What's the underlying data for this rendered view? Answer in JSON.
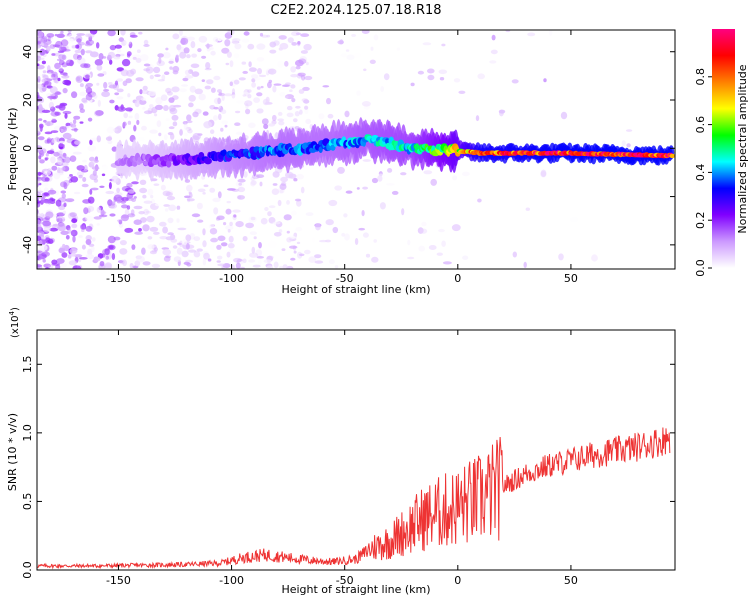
{
  "title": "C2E2.2024.125.07.18.R18",
  "chart_data": [
    {
      "type": "heatmap",
      "xlabel": "Height of straight line (km)",
      "ylabel": "Frequency (Hz)",
      "xlim": [
        -186,
        96
      ],
      "ylim": [
        -50,
        49
      ],
      "xticks": [
        -150,
        -100,
        -50,
        0,
        50
      ],
      "yticks": [
        -40,
        -20,
        0,
        20,
        40
      ],
      "colorbar": {
        "label": "Normalized spectral amplitude",
        "range": [
          0,
          1
        ],
        "ticks": [
          "0.0",
          "0.2",
          "0.4",
          "0.6",
          "0.8"
        ],
        "colors": [
          "#ffffff",
          "#cc99ff",
          "#8000ff",
          "#0000ff",
          "#00ffff",
          "#00ff00",
          "#ffff00",
          "#ff8000",
          "#ff0000",
          "#ff0080"
        ]
      },
      "ridge": [
        {
          "x": -140,
          "y": -5,
          "amplitude": 0.15
        },
        {
          "x": -120,
          "y": -5,
          "amplitude": 0.25
        },
        {
          "x": -100,
          "y": -3,
          "amplitude": 0.35
        },
        {
          "x": -80,
          "y": -1,
          "amplitude": 0.4
        },
        {
          "x": -60,
          "y": 1,
          "amplitude": 0.4
        },
        {
          "x": -40,
          "y": 4,
          "amplitude": 0.45
        },
        {
          "x": -20,
          "y": 0,
          "amplitude": 0.5
        },
        {
          "x": 0,
          "y": -1,
          "amplitude": 0.7
        },
        {
          "x": 10,
          "y": -2,
          "amplitude": 0.9
        },
        {
          "x": 50,
          "y": -2,
          "amplitude": 0.95
        },
        {
          "x": 90,
          "y": -3,
          "amplitude": 0.95
        }
      ]
    },
    {
      "type": "line",
      "xlabel": "Height of straight line (km)",
      "ylabel": "SNR (10 * v/v)",
      "multiplier_label": "(x10",
      "multiplier_exponent": "4",
      "multiplier_close": ")",
      "xlim": [
        -186,
        96
      ],
      "ylim": [
        0,
        17500
      ],
      "xticks": [
        -150,
        -100,
        -50,
        0,
        50
      ],
      "yticks": [
        "0.0",
        "0.5",
        "1.0",
        "1.5"
      ],
      "color": "#ee3333",
      "x": [
        -186,
        -160,
        -140,
        -120,
        -105,
        -95,
        -85,
        -75,
        -65,
        -55,
        -45,
        -38,
        -30,
        -22,
        -15,
        -8,
        0,
        10,
        20,
        30,
        40,
        50,
        60,
        70,
        80,
        90,
        94
      ],
      "y": [
        300,
        300,
        350,
        400,
        500,
        900,
        1100,
        900,
        700,
        600,
        800,
        1600,
        2100,
        3000,
        3800,
        4200,
        4600,
        5200,
        6100,
        7000,
        7600,
        8000,
        8400,
        8700,
        9000,
        9400,
        9700
      ]
    }
  ]
}
